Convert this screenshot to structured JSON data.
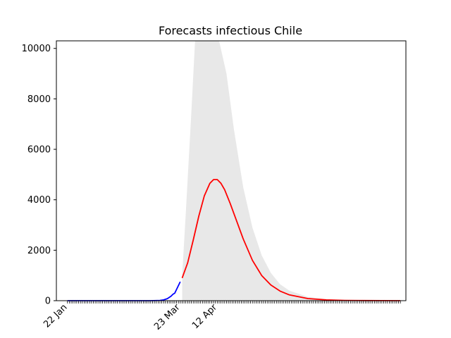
{
  "chart_data": {
    "type": "line",
    "title": "Forecasts infectious Chile",
    "xlabel": "",
    "ylabel": "",
    "x_tick_labels": [
      "22 Jan",
      "23 Mar",
      "12 Apr"
    ],
    "x_tick_days": [
      0,
      61,
      81
    ],
    "y_ticks": [
      0,
      2000,
      4000,
      6000,
      8000,
      10000
    ],
    "ylim": [
      0,
      10300
    ],
    "xlim": [
      -6,
      183
    ],
    "grid": false,
    "colors": {
      "observed": "#0000ff",
      "forecast": "#ff0000",
      "band": "#e8e8e8",
      "ticks": "#000000"
    },
    "series": [
      {
        "x": [
          0,
          10,
          20,
          30,
          40,
          45,
          50,
          52,
          54,
          56,
          57,
          58,
          59,
          60,
          61
        ],
        "y": [
          0,
          0,
          0,
          0,
          0,
          0,
          10,
          30,
          80,
          180,
          250,
          300,
          450,
          600,
          750
        ]
      },
      {
        "x": [
          62,
          65,
          68,
          71,
          74,
          77,
          79,
          81,
          83,
          85,
          88,
          91,
          95,
          100,
          105,
          110,
          115,
          120,
          130,
          140,
          150,
          160,
          170,
          180
        ],
        "y": [
          900,
          1500,
          2400,
          3350,
          4150,
          4650,
          4800,
          4800,
          4650,
          4400,
          3850,
          3250,
          2450,
          1600,
          1000,
          620,
          380,
          230,
          85,
          30,
          12,
          5,
          2,
          1
        ]
      }
    ],
    "uncertainty_band": {
      "x": [
        62,
        64,
        67,
        69,
        70,
        73,
        76,
        79,
        82,
        86,
        90,
        95,
        100,
        105,
        110,
        115,
        120,
        130,
        140,
        150,
        160,
        170,
        180
      ],
      "lower": [
        0,
        0,
        0,
        0,
        0,
        0,
        0,
        0,
        0,
        0,
        0,
        0,
        0,
        0,
        0,
        0,
        0,
        0,
        0,
        0,
        0,
        0,
        0
      ],
      "upper": [
        1000,
        3500,
        7500,
        10300,
        10300,
        10300,
        10300,
        10300,
        10300,
        9000,
        6800,
        4500,
        2900,
        1800,
        1100,
        650,
        400,
        150,
        60,
        25,
        10,
        5,
        2
      ]
    }
  }
}
